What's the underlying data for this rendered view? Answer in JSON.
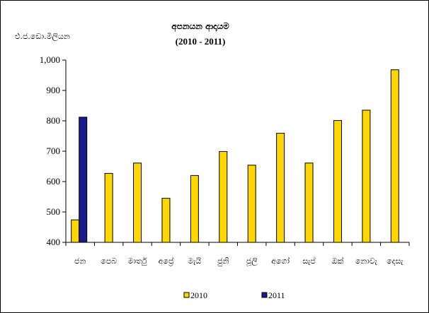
{
  "chart_data": {
    "type": "bar",
    "title": "අපනයන ආදායම",
    "subtitle": "(2010  -  2011)",
    "ylabel": "එ.ජ.ඩො.මිලියන",
    "xlabel": "",
    "categories": [
      "ජන",
      "පෙබ",
      "මාර්තු",
      "අප්‍රේ",
      "මැයි",
      "ජුනි",
      "ජූලි",
      "අගෝ",
      "සැප්",
      "ඔක්",
      "නොවැ",
      "දෙසැ"
    ],
    "series": [
      {
        "name": "2010",
        "color": "#FFD700",
        "values": [
          474,
          627,
          661,
          545,
          620,
          699,
          654,
          759,
          661,
          801,
          835,
          968
        ]
      },
      {
        "name": "2011",
        "color": "#1A1A8C",
        "values": [
          812,
          null,
          null,
          null,
          null,
          null,
          null,
          null,
          null,
          null,
          null,
          null
        ]
      }
    ],
    "yticks": [
      "400",
      "500",
      "600",
      "700",
      "800",
      "900",
      "1,000"
    ],
    "ylim": [
      400,
      1000
    ],
    "grid": false,
    "legend": "bottom"
  }
}
